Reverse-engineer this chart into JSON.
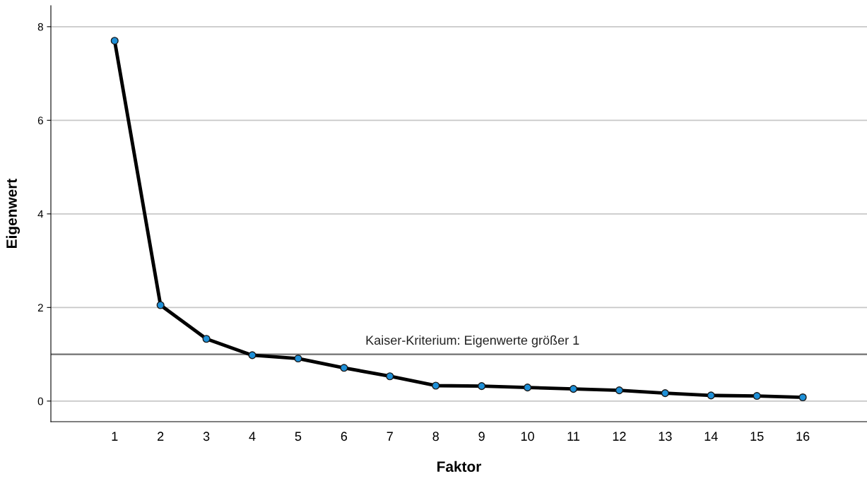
{
  "chart_data": {
    "type": "line",
    "xlabel": "Faktor",
    "ylabel": "Eigenwert",
    "categories": [
      "1",
      "2",
      "3",
      "4",
      "5",
      "6",
      "7",
      "8",
      "9",
      "10",
      "11",
      "12",
      "13",
      "14",
      "15",
      "16"
    ],
    "series": [
      {
        "color": "#000000",
        "values": [
          7.7,
          2.05,
          1.33,
          0.98,
          0.91,
          0.71,
          0.53,
          0.33,
          0.32,
          0.29,
          0.26,
          0.23,
          0.17,
          0.12,
          0.11,
          0.08
        ]
      }
    ],
    "ylim": [
      -0.44,
      8.45
    ],
    "yticks": [
      0,
      2,
      4,
      6,
      8
    ],
    "grid": "y",
    "marker": "circle",
    "line_style": "solid",
    "ref_lines": [
      {
        "axis": "y",
        "value": 1,
        "label": "Kaiser-Kriterium: Eigenwerte größer 1",
        "color": "#707070"
      }
    ]
  }
}
